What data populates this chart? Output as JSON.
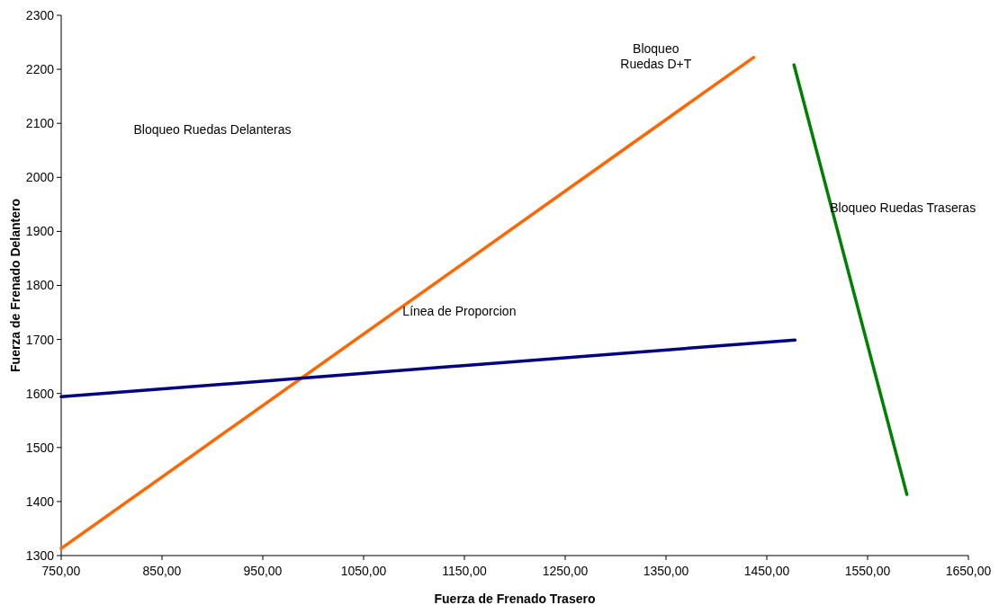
{
  "chart_data": {
    "type": "line",
    "xlabel": "Fuerza de Frenado Trasero",
    "ylabel": "Fuerza de Frenado Delantero",
    "xlim": [
      750,
      1650
    ],
    "ylim": [
      1300,
      2300
    ],
    "xticks": [
      {
        "value": 750,
        "label": "750,00"
      },
      {
        "value": 850,
        "label": "850,00"
      },
      {
        "value": 950,
        "label": "950,00"
      },
      {
        "value": 1050,
        "label": "1050,00"
      },
      {
        "value": 1150,
        "label": "1150,00"
      },
      {
        "value": 1250,
        "label": "1250,00"
      },
      {
        "value": 1350,
        "label": "1350,00"
      },
      {
        "value": 1450,
        "label": "1450,00"
      },
      {
        "value": 1550,
        "label": "1550,00"
      },
      {
        "value": 1650,
        "label": "1650,00"
      }
    ],
    "yticks": [
      1300,
      1400,
      1500,
      1600,
      1700,
      1800,
      1900,
      2000,
      2100,
      2200,
      2300
    ],
    "grid": false,
    "marker": "none",
    "line_style": "solid",
    "series": [
      {
        "color": "#ff6600",
        "x": [
          750,
          1437
        ],
        "values": [
          1313,
          2222
        ]
      },
      {
        "color": "#000080",
        "x": [
          750,
          1478
        ],
        "values": [
          1594,
          1699
        ]
      },
      {
        "color": "#008000",
        "x": [
          1477,
          1589
        ],
        "values": [
          2208,
          1413
        ]
      }
    ],
    "annotations": [
      "Bloqueo Ruedas Delanteras",
      "Bloqueo\nRuedas D+T",
      "Bloqueo Ruedas Traseras",
      "Línea de Proporcion"
    ]
  }
}
